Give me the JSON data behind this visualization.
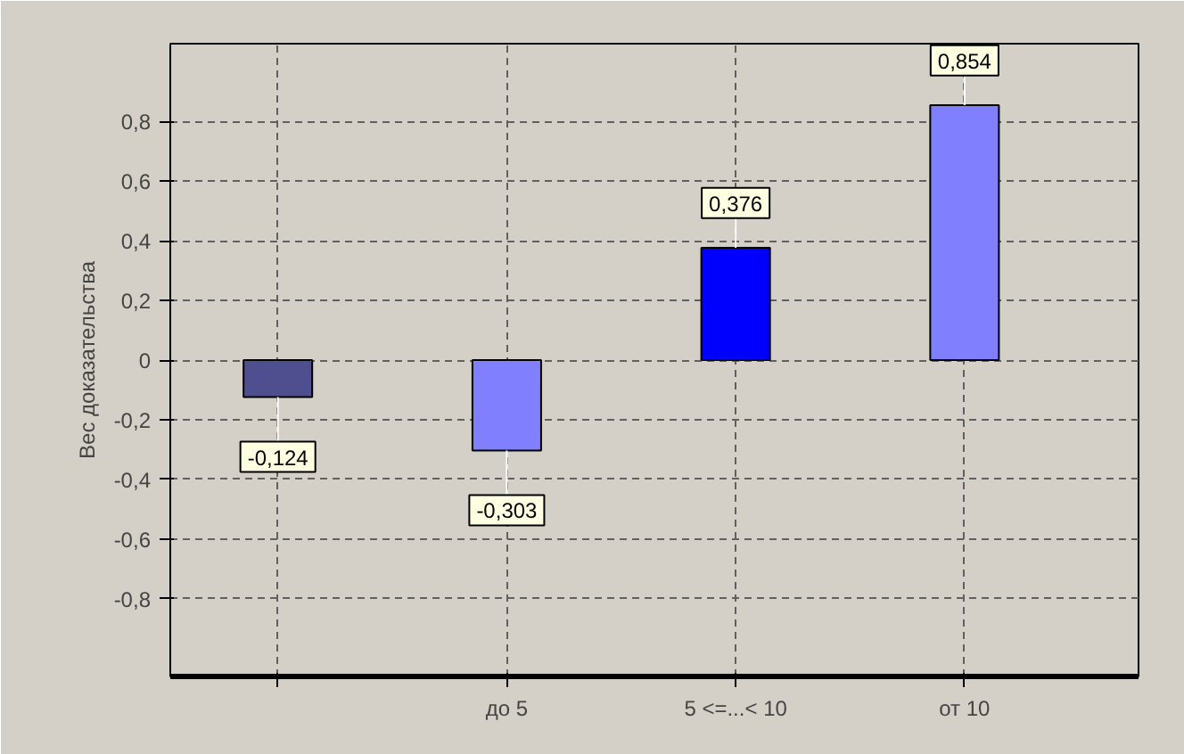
{
  "chart_data": {
    "type": "bar",
    "ylabel": "Вес доказательства",
    "categories": [
      null,
      "до 5",
      "5 <=...< 10",
      "от 10"
    ],
    "values": [
      -0.124,
      -0.303,
      0.376,
      0.854
    ],
    "colors": [
      "#4f4f8f",
      "#8080ff",
      "#0000ff",
      "#8080ff"
    ],
    "value_labels": [
      "-0,124",
      "-0,303",
      "0,376",
      "0,854"
    ],
    "ylim": [
      -1.06,
      1.06
    ],
    "yticks": [
      {
        "value": -0.8,
        "label": "-0,8"
      },
      {
        "value": -0.6,
        "label": "-0,6"
      },
      {
        "value": -0.4,
        "label": "-0,4"
      },
      {
        "value": -0.2,
        "label": "-0,2"
      },
      0,
      {
        "value": 0.2,
        "label": "0,2"
      },
      {
        "value": 0.4,
        "label": "0,4"
      },
      {
        "value": 0.6,
        "label": "0,6"
      },
      {
        "value": 0.8,
        "label": "0,8"
      }
    ],
    "grid": true
  }
}
